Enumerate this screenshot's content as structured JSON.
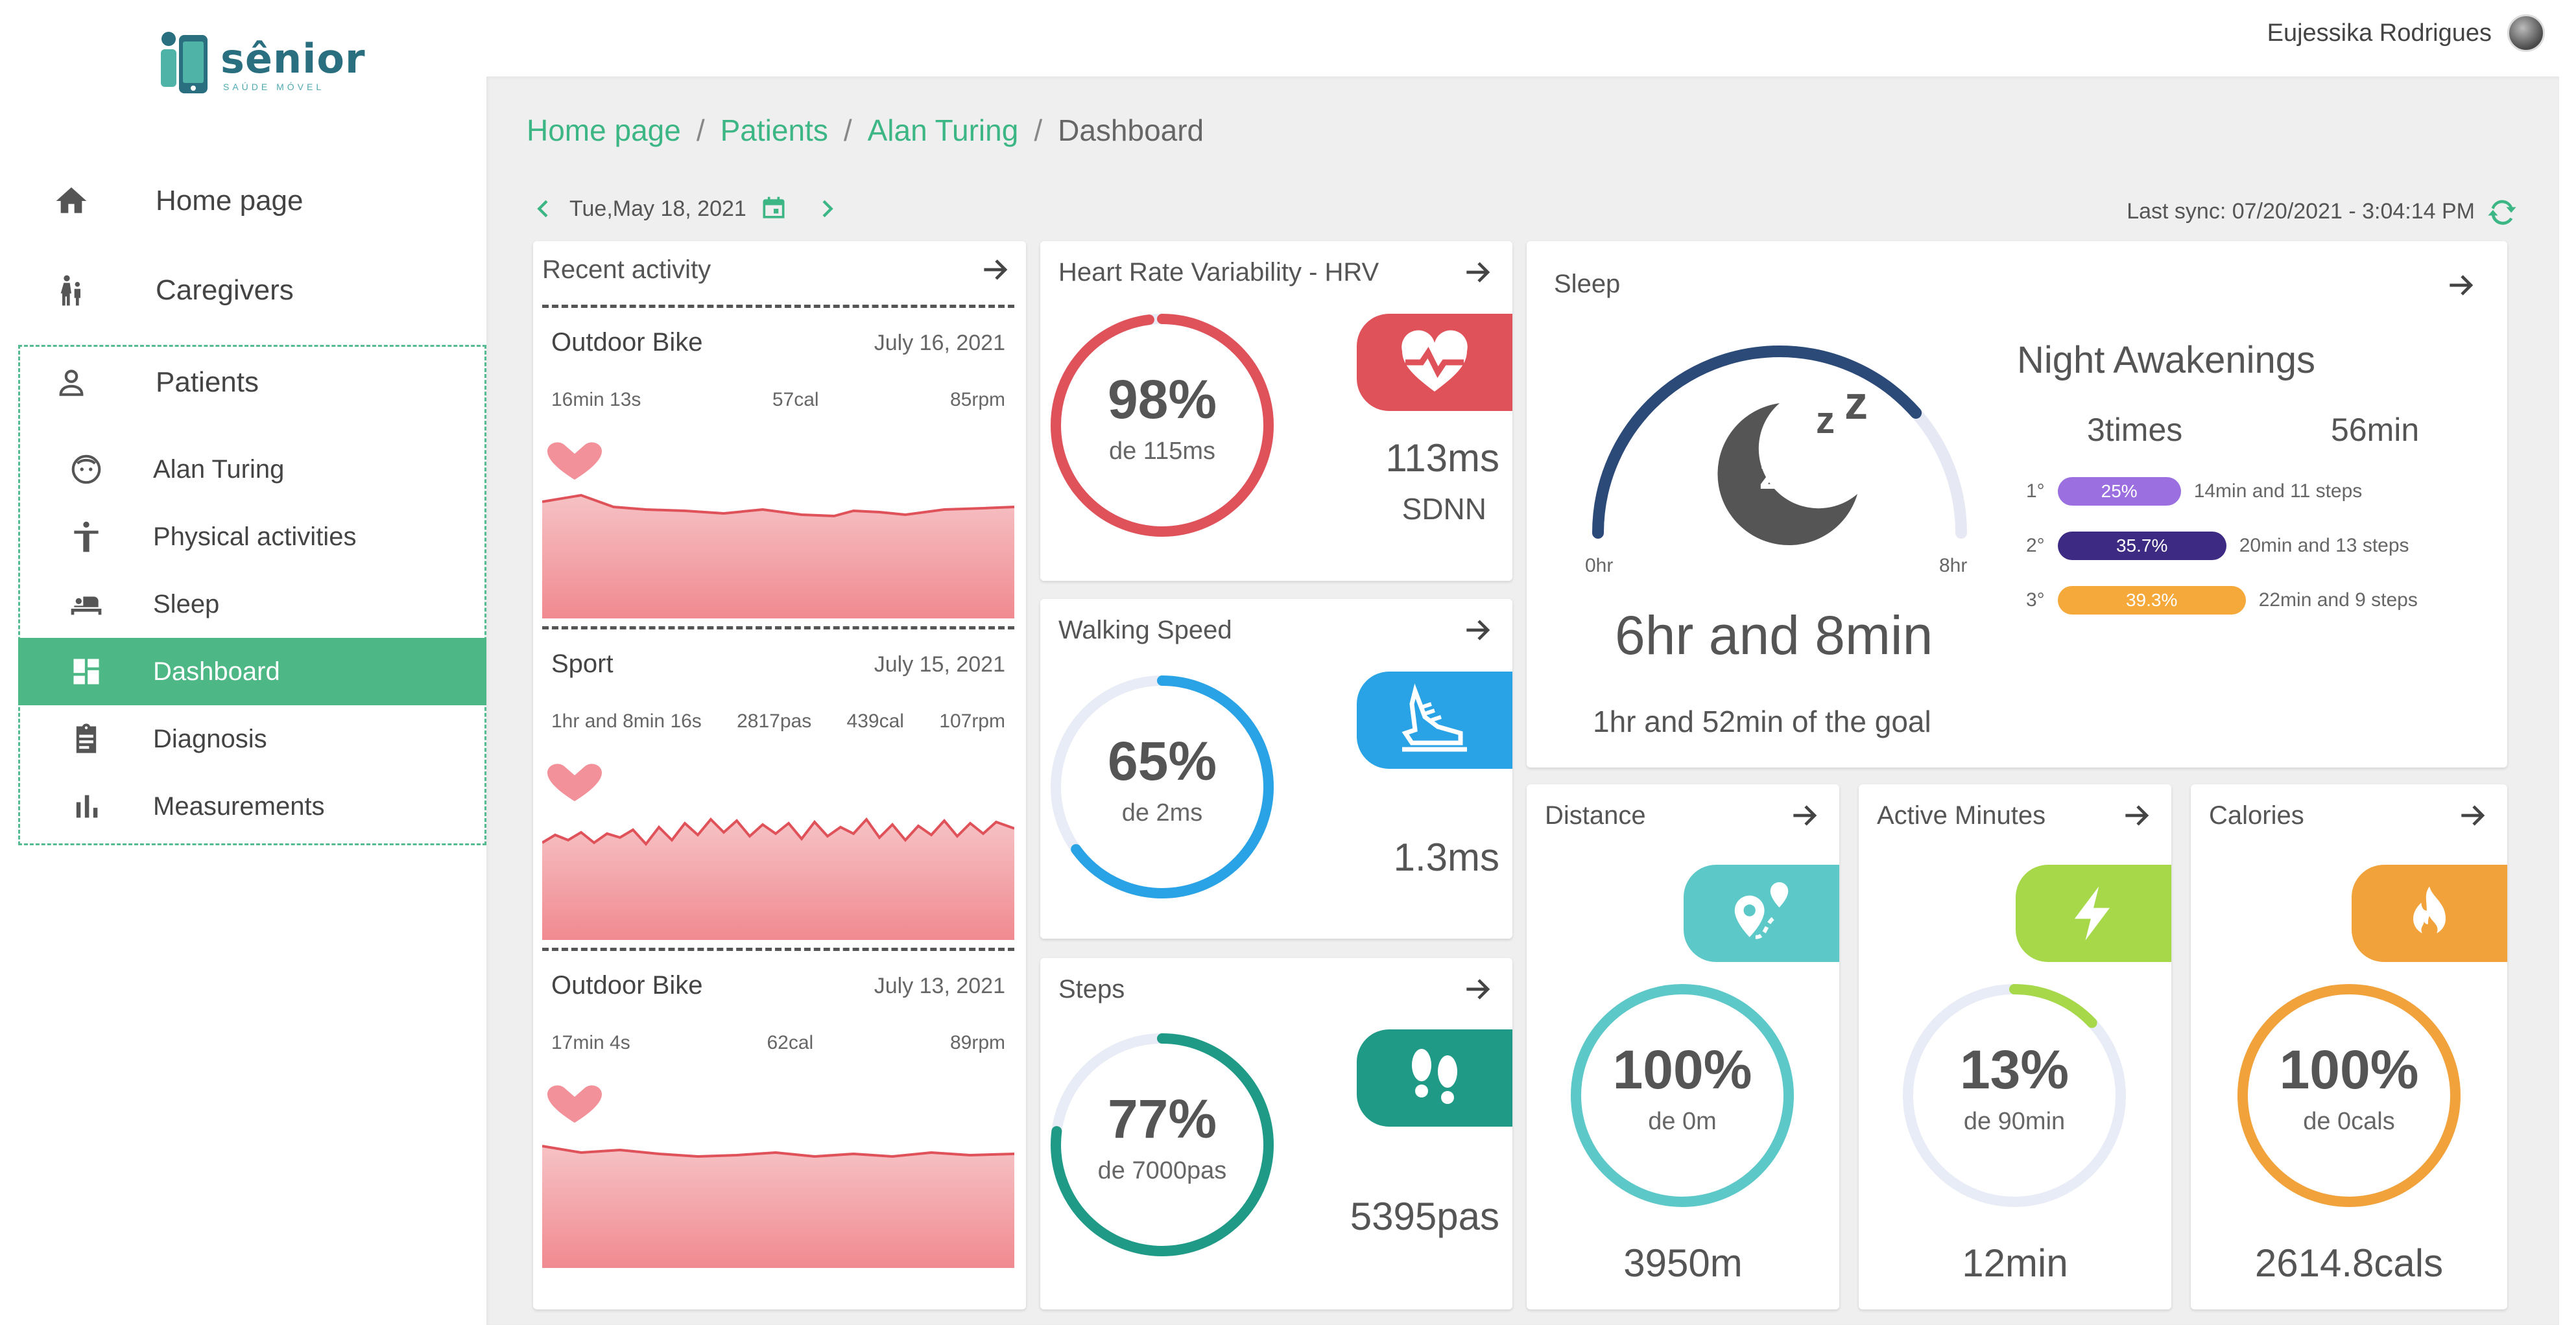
{
  "app": {
    "logo_text": "sênior",
    "logo_sub": "SAÚDE MÓVEL"
  },
  "user": {
    "name": "Eujessika Rodrigues"
  },
  "sidebar": {
    "main": [
      {
        "label": "Home page"
      },
      {
        "label": "Caregivers"
      },
      {
        "label": "Patients"
      }
    ],
    "sub": [
      {
        "label": "Alan Turing"
      },
      {
        "label": "Physical activities"
      },
      {
        "label": "Sleep"
      },
      {
        "label": "Dashboard"
      },
      {
        "label": "Diagnosis"
      },
      {
        "label": "Measurements"
      }
    ]
  },
  "breadcrumb": [
    "Home page",
    "Patients",
    "Alan Turing",
    "Dashboard"
  ],
  "date": {
    "label": "Tue,May 18, 2021"
  },
  "sync": {
    "label": "Last sync: 07/20/2021 - 3:04:14 PM"
  },
  "recent": {
    "title": "Recent activity",
    "items": [
      {
        "name": "Outdoor Bike",
        "date": "July 16, 2021",
        "stats": [
          "16min 13s",
          "57cal",
          "85rpm"
        ]
      },
      {
        "name": "Sport",
        "date": "July 15, 2021",
        "stats": [
          "1hr and 8min 16s",
          "2817pas",
          "439cal",
          "107rpm"
        ]
      },
      {
        "name": "Outdoor Bike",
        "date": "July 13, 2021",
        "stats": [
          "17min 4s",
          "62cal",
          "89rpm"
        ]
      }
    ]
  },
  "hrv": {
    "title": "Heart Rate Variability - HRV",
    "pct": "98%",
    "sub": "de 115ms",
    "progress": 0.98,
    "value": "113ms",
    "unit_label": "SDNN"
  },
  "walking": {
    "title": "Walking Speed",
    "pct": "65%",
    "sub": "de 2ms",
    "progress": 0.65,
    "value": "1.3ms"
  },
  "steps": {
    "title": "Steps",
    "pct": "77%",
    "sub": "de 7000pas",
    "progress": 0.77,
    "value": "5395pas"
  },
  "sleep": {
    "title": "Sleep",
    "gauge_min": "0hr",
    "gauge_max": "8hr",
    "progress": 0.77,
    "total": "6hr and 8min",
    "goal": "1hr and 52min of the goal",
    "na_title": "Night Awakenings",
    "na_times": "3times",
    "na_minutes": "56min",
    "awakenings": [
      {
        "rank": "1°",
        "pct": "25%",
        "detail": "14min and 11 steps",
        "color": "#9b6fe0"
      },
      {
        "rank": "2°",
        "pct": "35.7%",
        "detail": "20min and 13 steps",
        "color": "#3d2a82"
      },
      {
        "rank": "3°",
        "pct": "39.3%",
        "detail": "22min and 9 steps",
        "color": "#f5a93a"
      }
    ]
  },
  "distance": {
    "title": "Distance",
    "pct": "100%",
    "sub": "de 0m",
    "progress": 1.0,
    "value": "3950m"
  },
  "active": {
    "title": "Active Minutes",
    "pct": "13%",
    "sub": "de 90min",
    "progress": 0.13,
    "value": "12min"
  },
  "calories": {
    "title": "Calories",
    "pct": "100%",
    "sub": "de 0cals",
    "progress": 1.0,
    "value": "2614.8cals"
  },
  "colors": {
    "accent": "#3cb684",
    "hrv": "#e0525a",
    "walking": "#2aa3e6",
    "steps": "#1f9a86",
    "distance": "#5cc8c8",
    "active": "#a6d84a",
    "calories": "#f2a23a",
    "sleep_arc": "#2c4a78"
  }
}
